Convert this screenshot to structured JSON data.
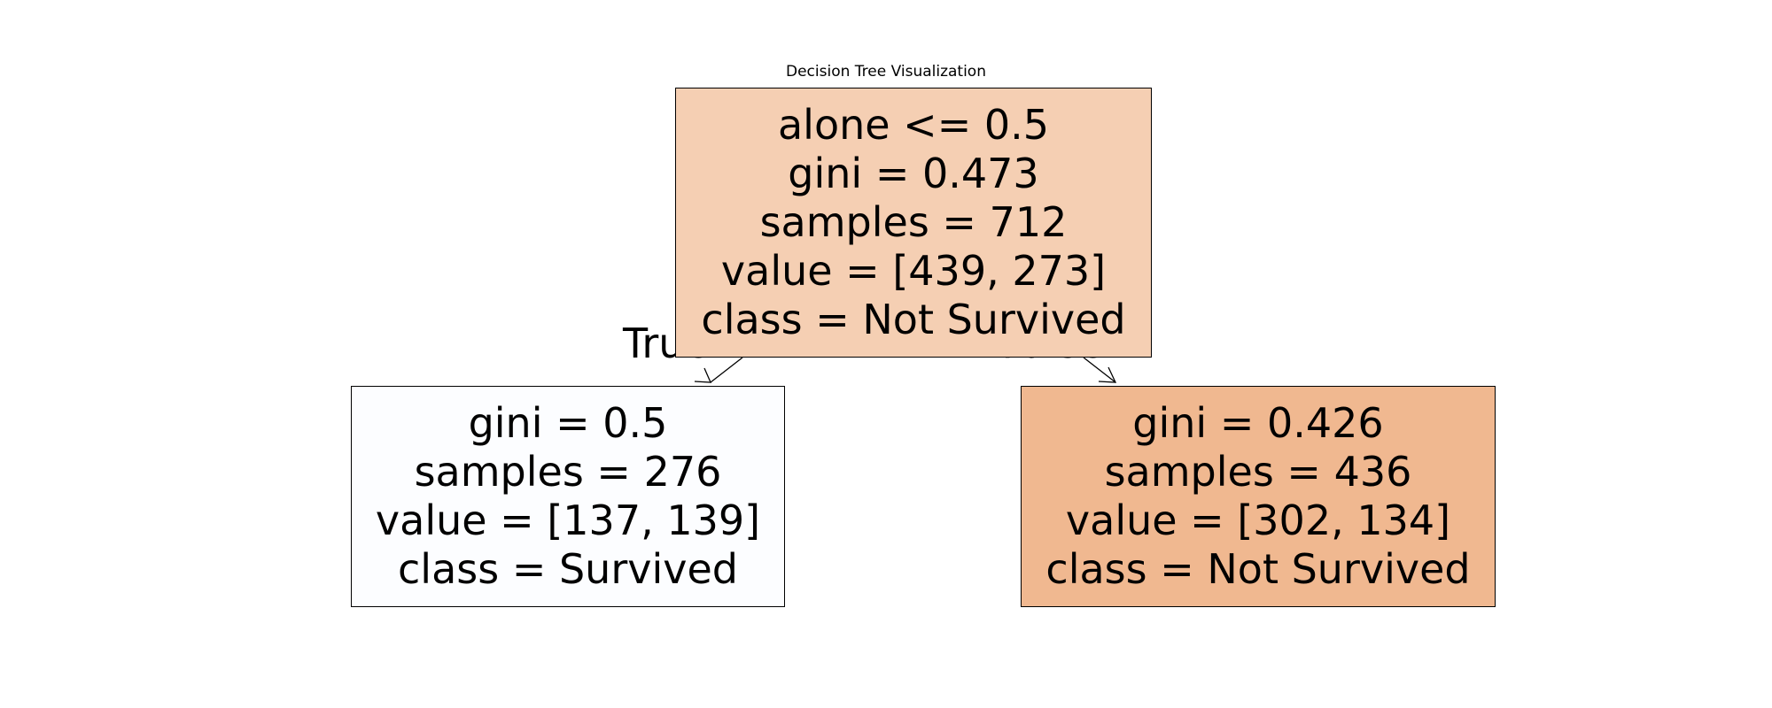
{
  "title": "Decision Tree Visualization",
  "edges": {
    "true_label": "True",
    "false_label": "False"
  },
  "nodes": {
    "root": {
      "fill": "#f5cfb3",
      "lines": [
        "alone <= 0.5",
        "gini = 0.473",
        "samples = 712",
        "value = [439, 273]",
        "class = Not Survived"
      ]
    },
    "left": {
      "fill": "#fcfdff",
      "lines": [
        "gini = 0.5",
        "samples = 276",
        "value = [137, 139]",
        "class = Survived"
      ]
    },
    "right": {
      "fill": "#f0b890",
      "lines": [
        "gini = 0.426",
        "samples = 436",
        "value = [302, 134]",
        "class = Not Survived"
      ]
    }
  }
}
